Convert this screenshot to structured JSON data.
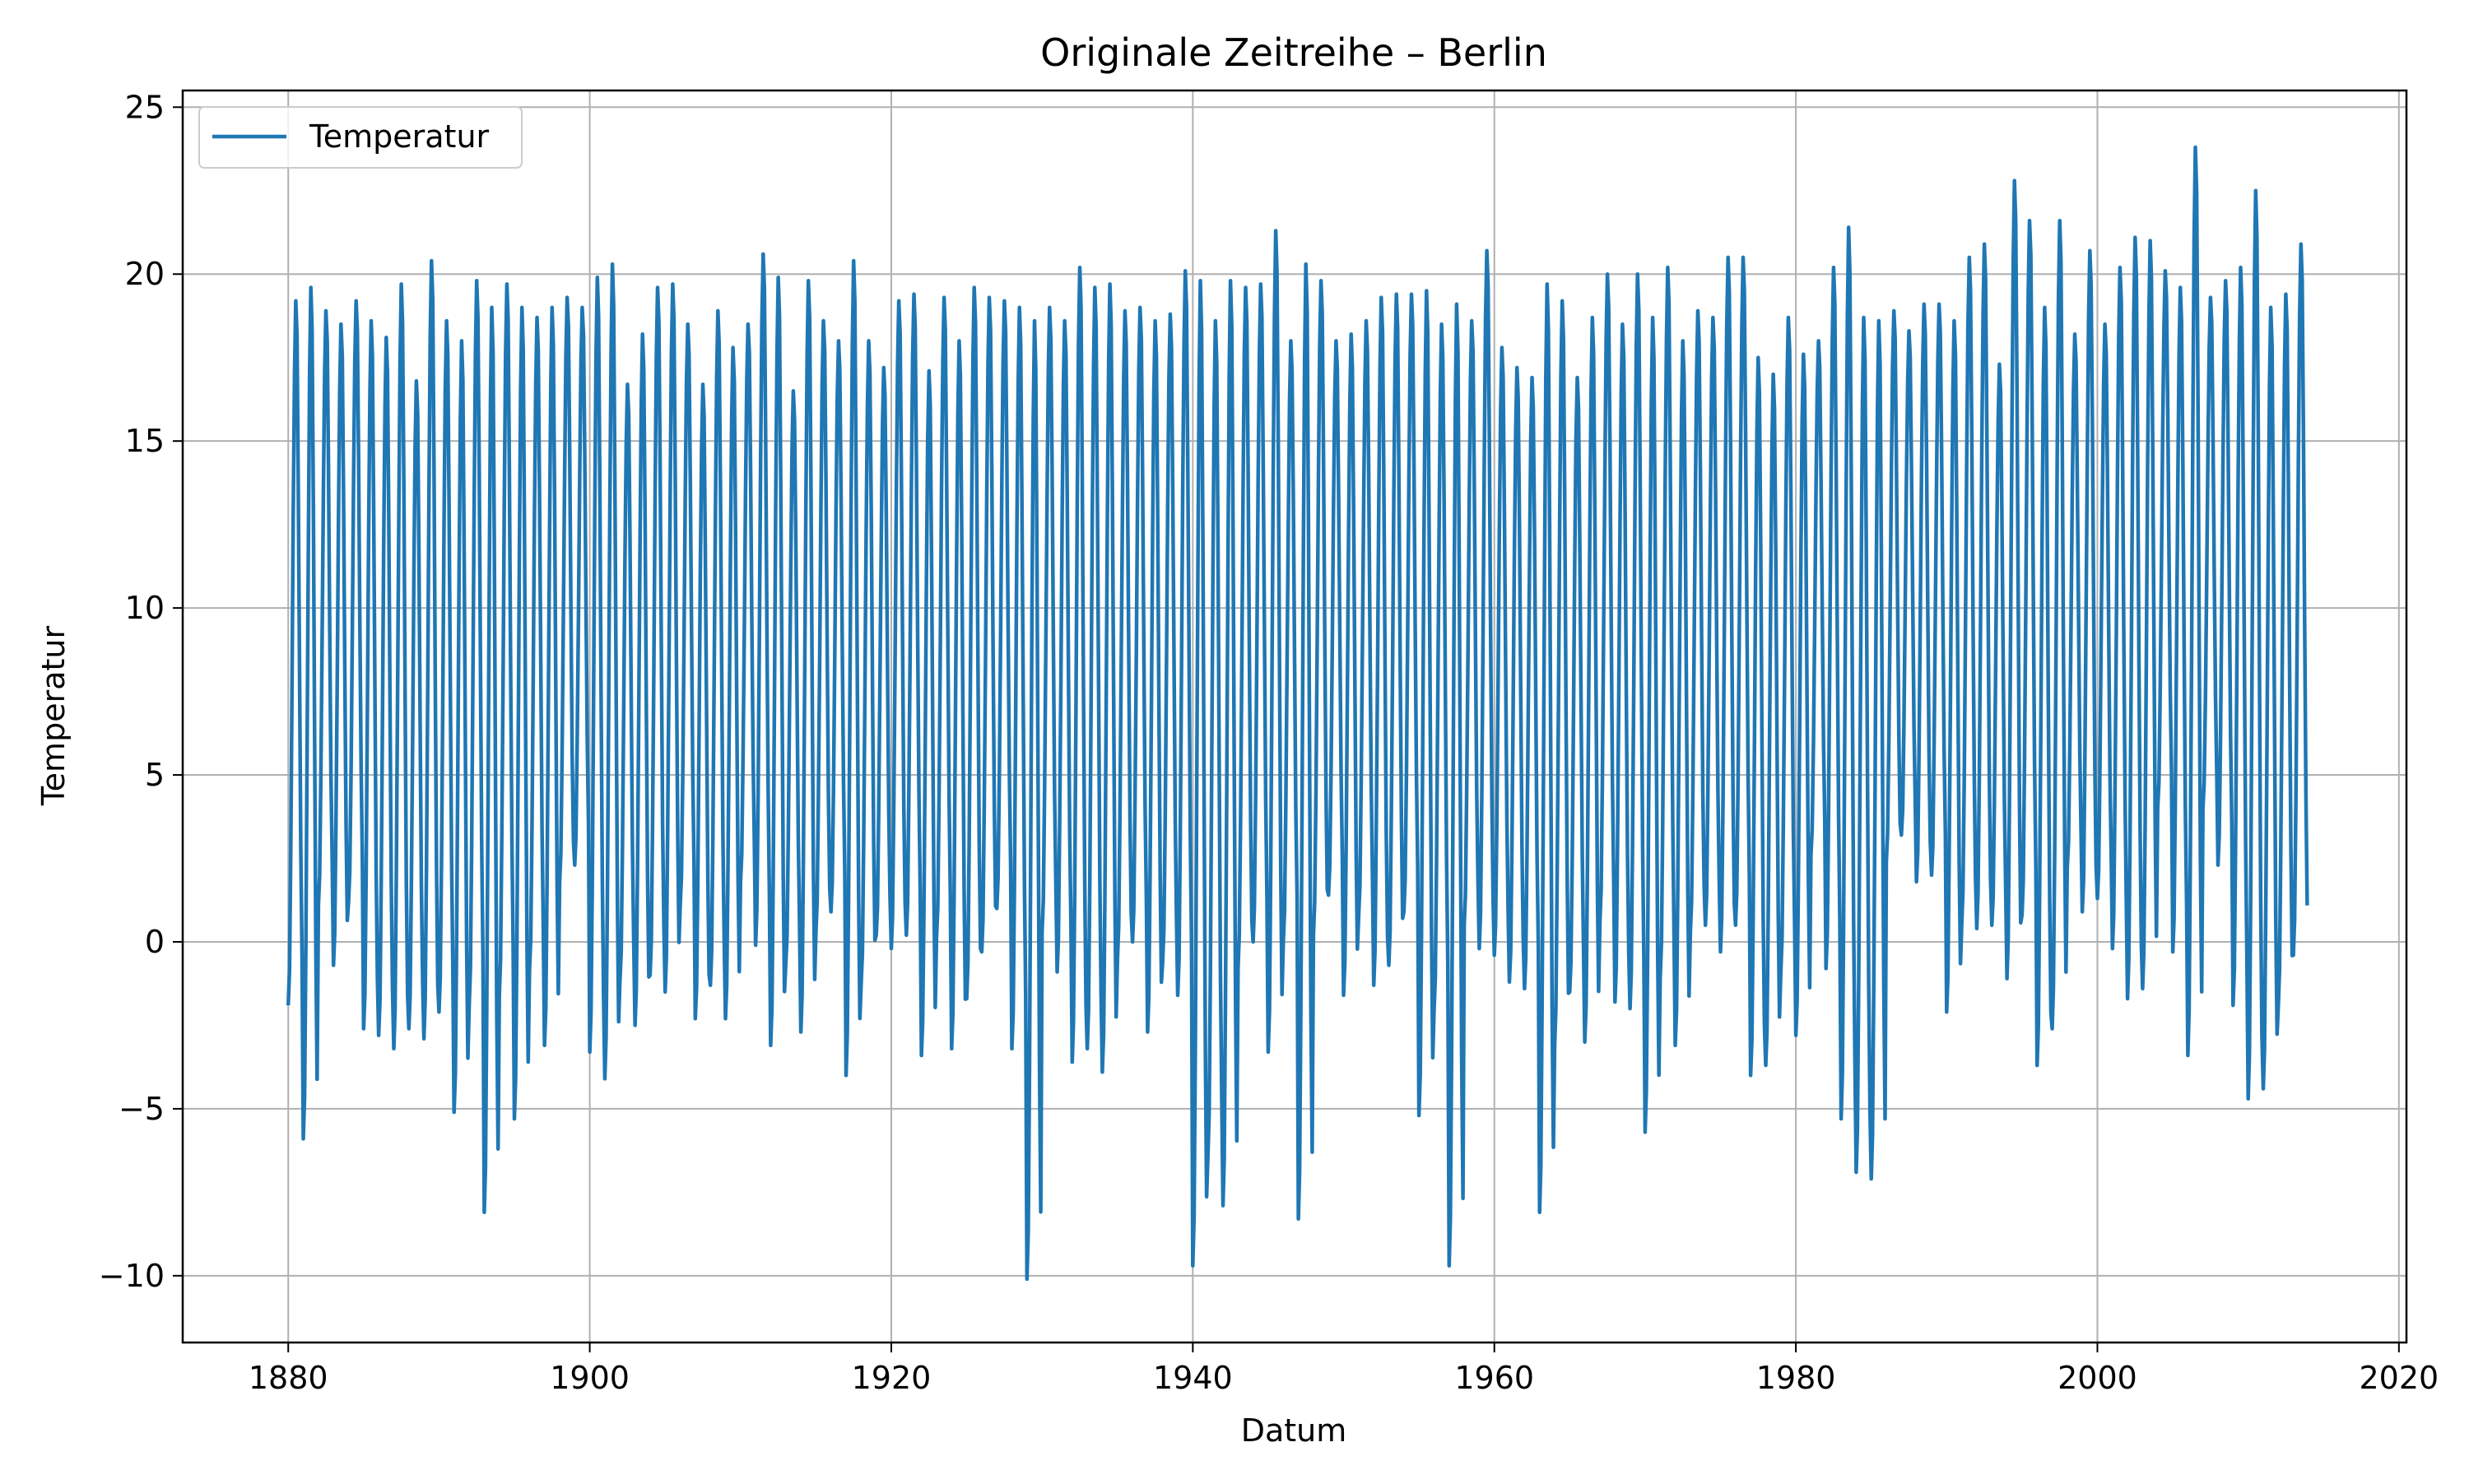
{
  "chart_data": {
    "type": "line",
    "title": "Originale Zeitreihe – Berlin",
    "xlabel": "Datum",
    "ylabel": "Temperatur",
    "xlim": [
      1873,
      2020.5
    ],
    "ylim": [
      -12,
      25.5
    ],
    "x_ticks": [
      1880,
      1900,
      1920,
      1940,
      1960,
      1980,
      2000,
      2020
    ],
    "x_tick_labels": [
      "1880",
      "1900",
      "1920",
      "1940",
      "1960",
      "1980",
      "2000",
      "2020"
    ],
    "y_ticks": [
      -10,
      -5,
      0,
      5,
      10,
      15,
      20,
      25
    ],
    "y_tick_labels": [
      "−10",
      "−5",
      "0",
      "5",
      "10",
      "15",
      "20",
      "25"
    ],
    "grid": true,
    "legend_position": "top-left",
    "color": "#1f77b4",
    "series": [
      {
        "name": "Temperatur",
        "time_start": 1880.0,
        "time_step": 0.0833333,
        "summer_peaks": [
          19.2,
          19.6,
          18.9,
          18.5,
          19.2,
          18.6,
          18.1,
          19.7,
          16.8,
          20.4,
          18.6,
          18.0,
          19.8,
          19.0,
          19.7,
          19.0,
          18.7,
          19.0,
          19.3,
          19.0,
          19.9,
          20.3,
          16.7,
          18.2,
          19.6,
          19.7,
          18.5,
          16.7,
          18.9,
          17.8,
          18.5,
          20.6,
          19.9,
          16.5,
          19.8,
          18.6,
          18.0,
          20.4,
          18.0,
          17.2,
          19.2,
          19.4,
          17.1,
          19.3,
          18.0,
          19.6,
          19.3,
          19.2,
          19.0,
          18.6,
          19.0,
          18.6,
          20.2,
          19.6,
          19.7,
          18.9,
          19.0,
          18.6,
          18.8,
          20.1,
          19.8,
          18.6,
          19.8,
          19.6,
          19.7,
          21.3,
          18.0,
          20.3,
          19.8,
          18.0,
          18.2,
          18.6,
          19.3,
          19.4,
          19.4,
          19.5,
          18.5,
          19.1,
          18.6,
          20.7,
          17.8,
          17.2,
          16.9,
          19.7,
          19.2,
          16.9,
          18.7,
          20.0,
          18.5,
          20.0,
          18.7,
          20.2,
          18.0,
          18.9,
          18.7,
          20.5,
          20.5,
          17.5,
          17.0,
          18.7,
          17.6,
          18.0,
          20.2,
          21.4,
          18.7,
          18.6,
          18.9,
          18.3,
          19.1,
          19.1,
          18.6,
          20.5,
          20.9,
          17.3,
          22.8,
          21.6,
          19.0,
          21.6,
          18.2,
          20.7,
          18.5,
          20.2,
          21.1,
          21.0,
          20.1,
          19.6,
          23.8,
          19.3,
          19.8,
          20.2,
          22.5,
          19.0,
          19.4,
          20.9
        ],
        "winter_troughs": [
          -1.9,
          -5.9,
          1.1,
          -0.7,
          1.2,
          -2.6,
          -2.8,
          -3.2,
          -2.6,
          -2.9,
          -2.1,
          -5.1,
          -1.9,
          -8.1,
          -1.6,
          -5.3,
          -0.9,
          -3.1,
          1.8,
          2.3,
          -3.3,
          -4.1,
          -1.2,
          -2.5,
          -1.0,
          -1.5,
          1.1,
          -2.3,
          -1.3,
          -2.3,
          1.8,
          -0.1,
          -3.1,
          -0.7,
          -2.7,
          0.3,
          0.9,
          -4.0,
          -1.3,
          0.2,
          -0.2,
          0.2,
          -3.4,
          0.1,
          -3.2,
          -1.7,
          -0.3,
          1.0,
          -3.2,
          -10.1,
          0.3,
          -0.9,
          -3.6,
          -3.2,
          -3.9,
          -0.5,
          0.0,
          -2.7,
          -0.6,
          -1.6,
          -9.7,
          -6.4,
          -7.9,
          -0.8,
          0.0,
          -3.3,
          0.0,
          -8.3,
          0.2,
          1.4,
          -1.6,
          0.8,
          -1.3,
          -0.7,
          0.9,
          -5.2,
          -2.1,
          -9.7,
          0.5,
          -0.2,
          -0.4,
          -1.2,
          -1.4,
          -8.1,
          -3.1,
          -1.5,
          -3.0,
          0.6,
          -1.8,
          -2.0,
          -5.7,
          -1.1,
          -3.1,
          0.3,
          0.5,
          -0.3,
          0.5,
          -4.0,
          -3.7,
          -0.9,
          -2.8,
          2.6,
          -0.8,
          -5.3,
          -6.9,
          -7.1,
          2.4,
          3.2,
          1.8,
          2.0,
          -2.1,
          0.5,
          0.4,
          0.5,
          -1.1,
          0.8,
          -3.7,
          -2.6,
          2.2,
          0.9,
          1.3,
          -0.2,
          -1.7,
          -1.4,
          4.0,
          -0.3,
          -3.4,
          4.0,
          2.3,
          -1.9,
          -4.7,
          -4.4,
          -1.9,
          -0.4
        ]
      }
    ]
  }
}
